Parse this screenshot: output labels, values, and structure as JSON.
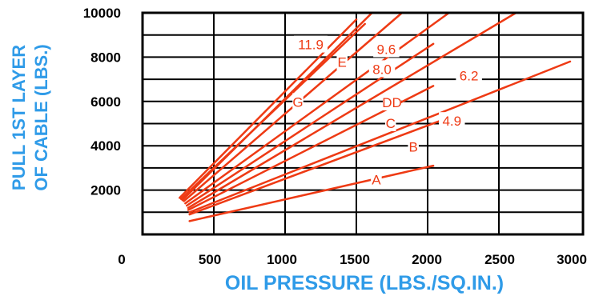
{
  "chart_data": {
    "type": "line",
    "xlabel": "OIL PRESSURE (LBS./SQ.IN.)",
    "ylabel_line1": "PULL 1ST LAYER",
    "ylabel_line2": "OF CABLE (LBS.)",
    "xlim": [
      0,
      3000
    ],
    "ylim": [
      0,
      10000
    ],
    "x_ticks": [
      "0",
      "500",
      "1000",
      "1500",
      "2000",
      "2500",
      "3000"
    ],
    "y_ticks": [
      "2000",
      "4000",
      "6000",
      "8000",
      "10000"
    ],
    "grid": true,
    "line_color": "#ee3a14",
    "axis_title_color": "#2f9be8",
    "series": [
      {
        "name": "A",
        "points": [
          [
            330,
            600
          ],
          [
            2040,
            3100
          ]
        ]
      },
      {
        "name": "B",
        "points": [
          [
            330,
            900
          ],
          [
            2140,
            5250
          ]
        ]
      },
      {
        "name": "4.9",
        "points": [
          [
            330,
            1000
          ],
          [
            3000,
            7800
          ]
        ]
      },
      {
        "name": "C",
        "points": [
          [
            320,
            1100
          ],
          [
            2040,
            6700
          ]
        ]
      },
      {
        "name": "6.2",
        "points": [
          [
            320,
            1200
          ],
          [
            2620,
            10000
          ]
        ]
      },
      {
        "name": "DD",
        "points": [
          [
            310,
            1300
          ],
          [
            2040,
            8600
          ]
        ]
      },
      {
        "name": "8.0",
        "points": [
          [
            300,
            1400
          ],
          [
            2150,
            10000
          ]
        ]
      },
      {
        "name": "9.6",
        "points": [
          [
            290,
            1500
          ],
          [
            1820,
            10000
          ]
        ]
      },
      {
        "name": "E",
        "points": [
          [
            280,
            1550
          ],
          [
            1610,
            10000
          ]
        ]
      },
      {
        "name": "G",
        "points": [
          [
            270,
            1600
          ],
          [
            1560,
            9500
          ]
        ]
      },
      {
        "name": "11.9",
        "points": [
          [
            260,
            1650
          ],
          [
            1500,
            9700
          ]
        ]
      }
    ],
    "series_labels": [
      {
        "text": "11.9",
        "x": 1180,
        "y": 8570
      },
      {
        "text": "9.6",
        "x": 1710,
        "y": 8360
      },
      {
        "text": "E",
        "x": 1400,
        "y": 7780
      },
      {
        "text": "8.0",
        "x": 1680,
        "y": 7460
      },
      {
        "text": "6.2",
        "x": 2290,
        "y": 7160
      },
      {
        "text": "G",
        "x": 1090,
        "y": 5980
      },
      {
        "text": "DD",
        "x": 1750,
        "y": 5960
      },
      {
        "text": "C",
        "x": 1740,
        "y": 5020
      },
      {
        "text": "4.9",
        "x": 2170,
        "y": 5120
      },
      {
        "text": "B",
        "x": 1900,
        "y": 3950
      },
      {
        "text": "A",
        "x": 1640,
        "y": 2470
      }
    ]
  }
}
